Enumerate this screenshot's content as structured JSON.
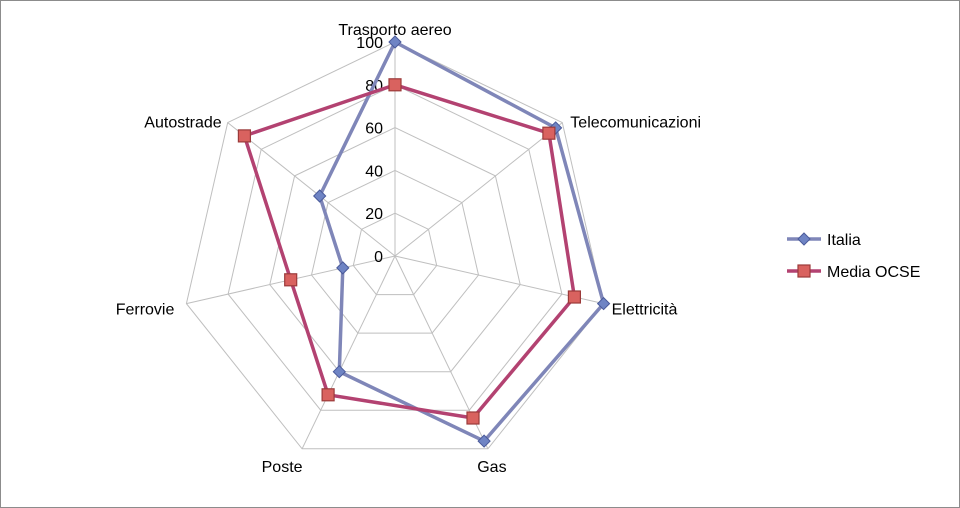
{
  "chart_data": {
    "type": "radar",
    "axes": [
      "Trasporto aereo",
      "Telecomunicazioni",
      "Elettricità",
      "Gas",
      "Poste",
      "Ferrovie",
      "Autostrade"
    ],
    "rlim": [
      0,
      100
    ],
    "ticks": [
      0,
      20,
      40,
      60,
      80,
      100
    ],
    "grid": true,
    "legend_position": "right",
    "series": [
      {
        "name": "Italia",
        "values": [
          100,
          96,
          100,
          96,
          60,
          25,
          45
        ],
        "color": "#7f86b8",
        "marker": "diamond"
      },
      {
        "name": "Media OCSE",
        "values": [
          80,
          92,
          86,
          84,
          72,
          50,
          90
        ],
        "color": "#b34271",
        "marker": "square",
        "marker_fill": "#d9625f"
      }
    ]
  }
}
